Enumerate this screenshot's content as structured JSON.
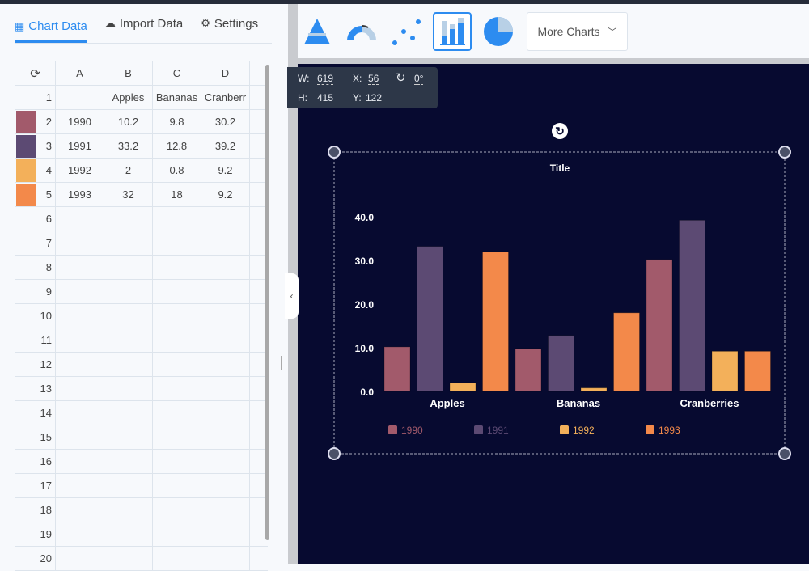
{
  "tabs": [
    {
      "label": "Chart Data",
      "icon": "table-icon",
      "active": true
    },
    {
      "label": "Import Data",
      "icon": "cloud-upload-icon"
    },
    {
      "label": "Settings",
      "icon": "gear-icon"
    }
  ],
  "sheet": {
    "refresh_icon": "refresh-icon",
    "columns": [
      "A",
      "B",
      "C",
      "D"
    ],
    "rows": [
      {
        "n": "1",
        "cells": [
          "",
          "Apples",
          "Bananas",
          "Cranberr"
        ]
      },
      {
        "n": "2",
        "color": "#a25a6b",
        "cells": [
          "1990",
          "10.2",
          "9.8",
          "30.2"
        ]
      },
      {
        "n": "3",
        "color": "#5c4a73",
        "cells": [
          "1991",
          "33.2",
          "12.8",
          "39.2"
        ]
      },
      {
        "n": "4",
        "color": "#f3b05a",
        "cells": [
          "1992",
          "2",
          "0.8",
          "9.2"
        ]
      },
      {
        "n": "5",
        "color": "#f3894a",
        "cells": [
          "1993",
          "32",
          "18",
          "9.2"
        ]
      },
      {
        "n": "6",
        "cells": [
          "",
          "",
          "",
          ""
        ]
      },
      {
        "n": "7",
        "cells": [
          "",
          "",
          "",
          ""
        ]
      },
      {
        "n": "8",
        "cells": [
          "",
          "",
          "",
          ""
        ]
      },
      {
        "n": "9",
        "cells": [
          "",
          "",
          "",
          ""
        ]
      },
      {
        "n": "10",
        "cells": [
          "",
          "",
          "",
          ""
        ]
      },
      {
        "n": "11",
        "cells": [
          "",
          "",
          "",
          ""
        ]
      },
      {
        "n": "12",
        "cells": [
          "",
          "",
          "",
          ""
        ]
      },
      {
        "n": "13",
        "cells": [
          "",
          "",
          "",
          ""
        ]
      },
      {
        "n": "14",
        "cells": [
          "",
          "",
          "",
          ""
        ]
      },
      {
        "n": "15",
        "cells": [
          "",
          "",
          "",
          ""
        ]
      },
      {
        "n": "16",
        "cells": [
          "",
          "",
          "",
          ""
        ]
      },
      {
        "n": "17",
        "cells": [
          "",
          "",
          "",
          ""
        ]
      },
      {
        "n": "18",
        "cells": [
          "",
          "",
          "",
          ""
        ]
      },
      {
        "n": "19",
        "cells": [
          "",
          "",
          "",
          ""
        ]
      },
      {
        "n": "20",
        "cells": [
          "",
          "",
          "",
          ""
        ]
      }
    ]
  },
  "toolbar": {
    "chart_types": [
      "pyramid-chart-icon",
      "gauge-chart-icon",
      "scatter-chart-icon",
      "bar-chart-icon",
      "pie-chart-icon"
    ],
    "selected": "bar-chart-icon",
    "more_label": "More Charts"
  },
  "info": {
    "w_label": "W:",
    "w": "619",
    "h_label": "H:",
    "h": "415",
    "x_label": "X:",
    "x": "56",
    "y_label": "Y:",
    "y": "122",
    "rotation": "0°"
  },
  "chart_data": {
    "type": "bar",
    "title": "Title",
    "categories": [
      "Apples",
      "Bananas",
      "Cranberries"
    ],
    "series": [
      {
        "name": "1990",
        "color": "#a25a6b",
        "values": [
          10.2,
          9.8,
          30.2
        ]
      },
      {
        "name": "1991",
        "color": "#5c4a73",
        "values": [
          33.2,
          12.8,
          39.2
        ]
      },
      {
        "name": "1992",
        "color": "#f3b05a",
        "values": [
          2,
          0.8,
          9.2
        ]
      },
      {
        "name": "1993",
        "color": "#f3894a",
        "values": [
          32,
          18,
          9.2
        ]
      }
    ],
    "yticks": [
      "0.0",
      "10.0",
      "20.0",
      "30.0",
      "40.0"
    ],
    "ylim": [
      0,
      40
    ],
    "legend": "bottom",
    "grid": false,
    "background": "#070a30"
  }
}
